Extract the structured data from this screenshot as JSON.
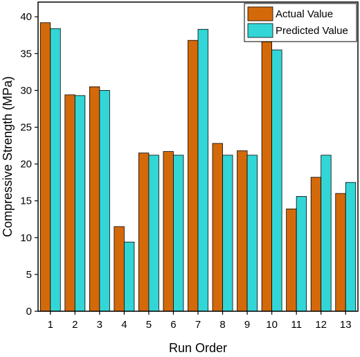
{
  "chart_data": {
    "type": "bar",
    "categories": [
      "1",
      "2",
      "3",
      "4",
      "5",
      "6",
      "7",
      "8",
      "9",
      "10",
      "11",
      "12",
      "13"
    ],
    "series": [
      {
        "name": "Actual Value",
        "color": "#d4690a",
        "values": [
          39.2,
          29.4,
          30.5,
          11.5,
          21.5,
          21.7,
          36.8,
          22.8,
          21.8,
          36.6,
          13.9,
          18.2,
          16.0
        ]
      },
      {
        "name": "Predicted Value",
        "color": "#33d6d6",
        "values": [
          38.4,
          29.3,
          30.0,
          9.4,
          21.2,
          21.2,
          38.3,
          21.2,
          21.2,
          35.5,
          15.6,
          21.2,
          17.5
        ]
      }
    ],
    "xlabel": "Run Order",
    "ylabel": "Compressive Strength (MPa)",
    "ylim": [
      0,
      42
    ],
    "yticks": [
      "0",
      "5",
      "10",
      "15",
      "20",
      "25",
      "30",
      "35",
      "40"
    ],
    "legend_position": "top-right",
    "grid": false
  }
}
